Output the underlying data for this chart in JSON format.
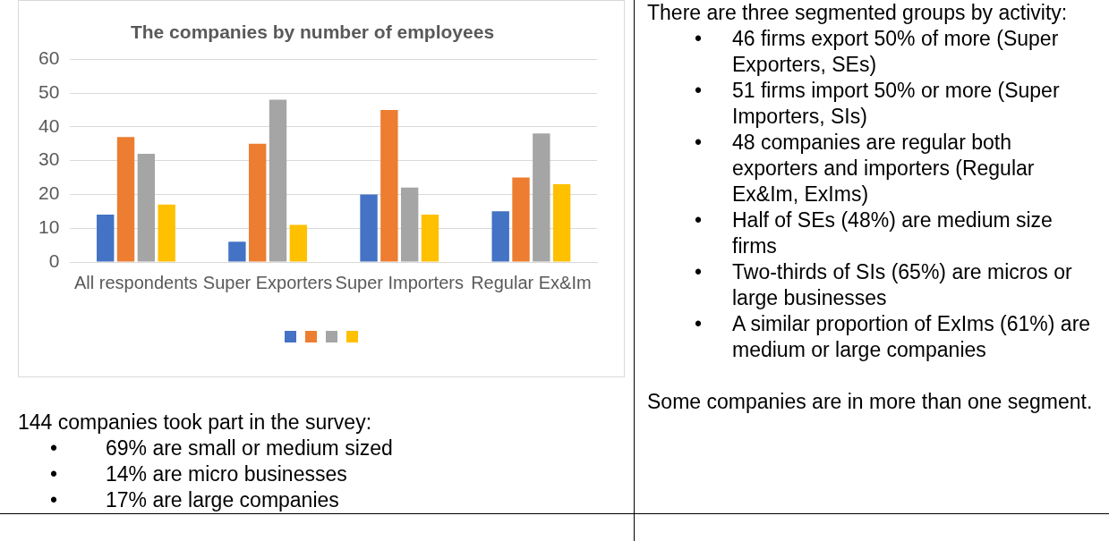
{
  "chart_data": {
    "type": "bar",
    "title": "The companies by number of employees",
    "categories": [
      "All respondents",
      "Super Exporters",
      "Super Importers",
      "Regular Ex&Im"
    ],
    "series": [
      {
        "color": "#4472c4",
        "values": [
          14,
          6,
          20,
          15
        ]
      },
      {
        "color": "#ed7d31",
        "values": [
          37,
          35,
          45,
          25
        ]
      },
      {
        "color": "#a5a5a5",
        "values": [
          32,
          48,
          22,
          38
        ]
      },
      {
        "color": "#ffc000",
        "values": [
          17,
          11,
          14,
          23
        ]
      }
    ],
    "ylim": [
      0,
      60
    ],
    "yticks": [
      0,
      10,
      20,
      30,
      40,
      50,
      60
    ],
    "grid": "y",
    "annotations": [
      "There are three segmented groups by activity:",
      "•\t46 firms export 50% of more (Super Exporters, SEs)",
      "•\t51 firms import 50% or more (Super Importers, SIs)",
      "•\t48 companies are regular both exporters and importers (Regular Ex&Im, ExIms)",
      "•\tHalf of SEs (48%) are medium size firms",
      "•\tTwo-thirds of SIs (65%) are micros or large businesses",
      "•\tA similar proportion of ExIms (61%) are medium or large companies",
      "Some companies are in more than one segment.",
      "144 companies took part in the survey:",
      "•\t69% are small or medium sized",
      "•\t14% are micro businesses",
      "•\t17% are large companies"
    ]
  }
}
